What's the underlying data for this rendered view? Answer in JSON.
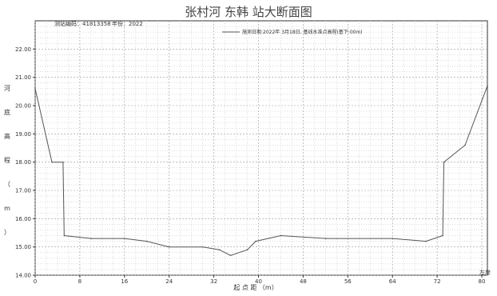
{
  "header": {
    "title": "张村河 东韩 站大断面图",
    "station_code": "测站编码：41813358",
    "year": "年份：2022"
  },
  "chart_data": {
    "type": "line",
    "legend_position": "top-right",
    "grid": true,
    "xlabel": "起 点 距 （m）",
    "ylabel": [
      "河",
      "底",
      "高",
      "程",
      "（",
      "m",
      "）"
    ],
    "xlim": [
      0,
      81
    ],
    "ylim": [
      14.0,
      23.0
    ],
    "x_ticks": [
      0,
      8,
      16,
      24,
      32,
      40,
      48,
      56,
      64,
      72,
      80
    ],
    "y_ticks": [
      14.0,
      15.0,
      16.0,
      17.0,
      18.0,
      19.0,
      20.0,
      21.0,
      22.0
    ],
    "x_end_label": "左岸",
    "series": [
      {
        "name": "施测日期:2022年 3月18日, 基线水准点高程(基下:00m)",
        "color": "#555555",
        "x": [
          0,
          3,
          5,
          5.2,
          10,
          16,
          20,
          24,
          30,
          33,
          35,
          38,
          39.5,
          44,
          52,
          64,
          70,
          73,
          73.2,
          77,
          81
        ],
        "y": [
          20.6,
          18.0,
          18.0,
          15.4,
          15.3,
          15.3,
          15.2,
          15.0,
          15.0,
          14.9,
          14.7,
          14.9,
          15.2,
          15.4,
          15.3,
          15.3,
          15.2,
          15.4,
          18.0,
          18.6,
          20.7
        ]
      }
    ]
  }
}
